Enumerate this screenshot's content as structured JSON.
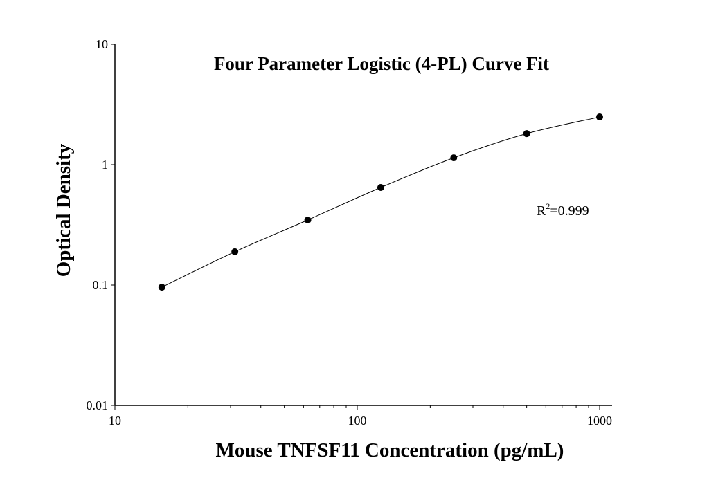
{
  "chart_data": {
    "type": "scatter",
    "title": "Four Parameter Logistic (4-PL) Curve Fit",
    "xlabel": "Mouse TNFSF11 Concentration (pg/mL)",
    "ylabel": "Optical Density",
    "x_scale": "log",
    "y_scale": "log",
    "xlim": [
      10,
      1000
    ],
    "ylim": [
      0.01,
      10
    ],
    "x_ticks": [
      "10",
      "100",
      "1000"
    ],
    "y_ticks": [
      "0.01",
      "0.1",
      "1",
      "10"
    ],
    "grid": false,
    "fit": "4-PL curve",
    "annotation": {
      "r_label": "R",
      "r_sup": "2",
      "r_value": "=0.999"
    },
    "x": [
      15.625,
      31.25,
      62.5,
      125,
      250,
      500,
      1000
    ],
    "y": [
      0.096,
      0.189,
      0.347,
      0.646,
      1.14,
      1.81,
      2.49
    ],
    "colors": {
      "points": "#000000",
      "curve": "#000000"
    }
  }
}
